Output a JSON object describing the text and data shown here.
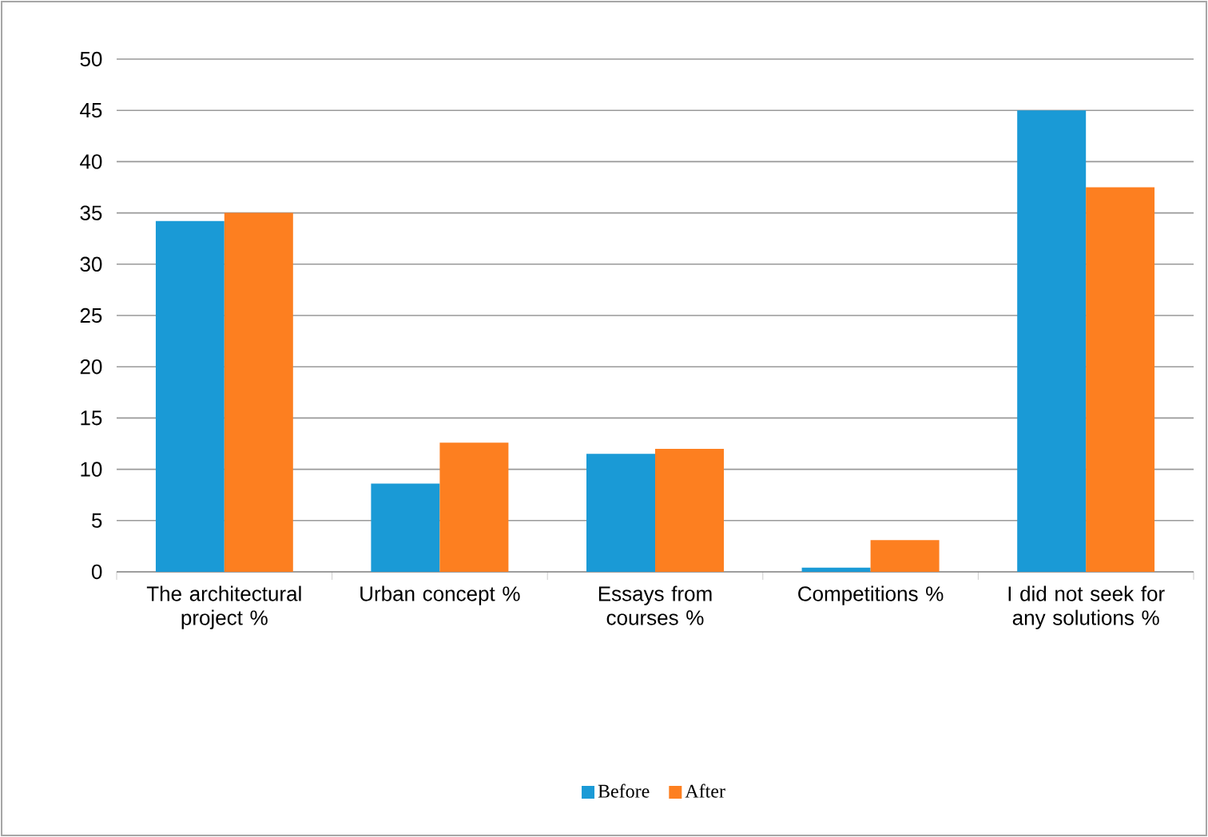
{
  "chart_data": {
    "type": "bar",
    "categories": [
      "The architectural project %",
      "Urban concept %",
      "Essays from courses %",
      "Competitions %",
      "I did not seek for any solutions %"
    ],
    "series": [
      {
        "name": "Before",
        "color": "#1a9ad6",
        "values": [
          34.2,
          8.6,
          11.5,
          0.4,
          45
        ]
      },
      {
        "name": "After",
        "color": "#fd7f20",
        "values": [
          35,
          12.6,
          12,
          3.1,
          37.5
        ]
      }
    ],
    "ylim": [
      0,
      50
    ],
    "yticks": [
      0,
      5,
      10,
      15,
      20,
      25,
      30,
      35,
      40,
      45,
      50
    ],
    "grid": "y",
    "legend": "bottom"
  }
}
